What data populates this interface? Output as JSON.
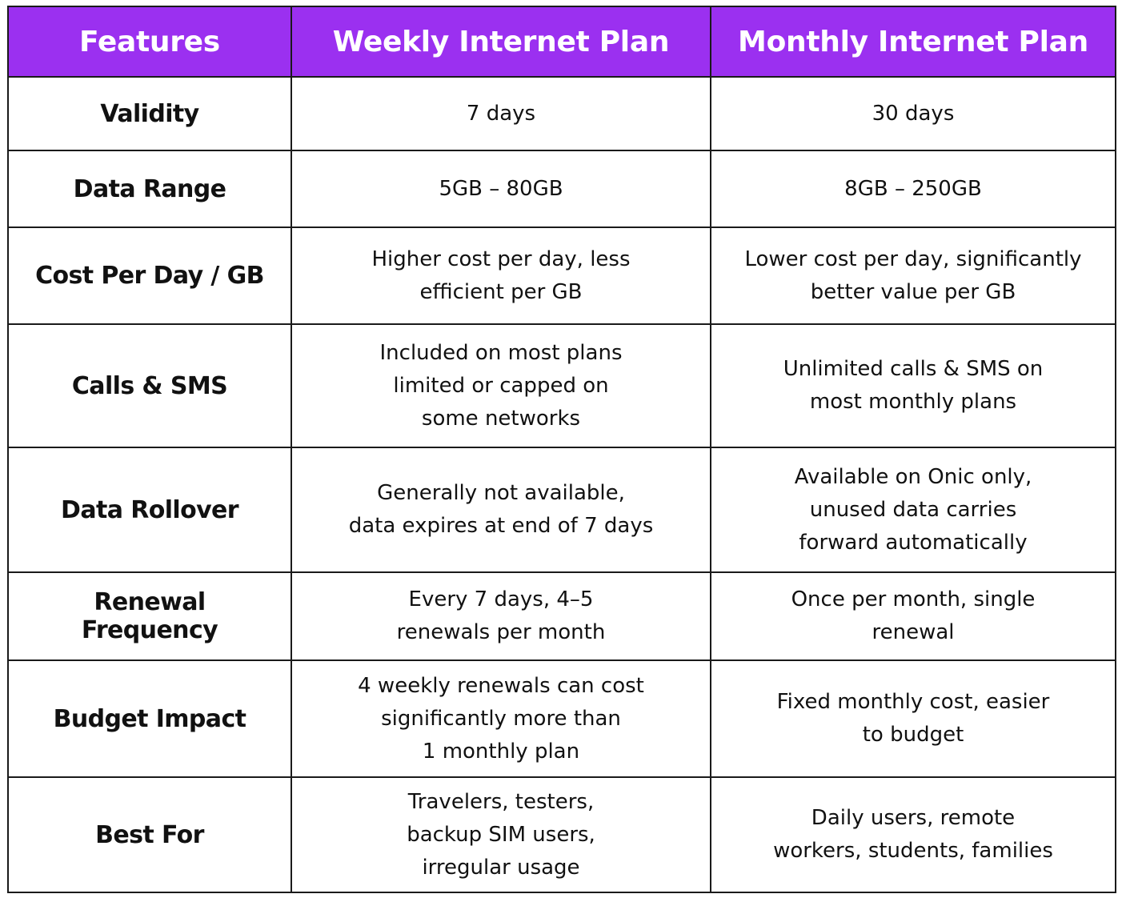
{
  "table": {
    "header": {
      "features": "Features",
      "weekly": "Weekly Internet Plan",
      "monthly": "Monthly Internet Plan"
    },
    "rows": [
      {
        "feature": "Validity",
        "weekly": "7 days",
        "monthly": "30 days"
      },
      {
        "feature": "Data Range",
        "weekly": "5GB – 80GB",
        "monthly": "8GB – 250GB"
      },
      {
        "feature": "Cost Per Day / GB",
        "weekly": "Higher cost per day, less\nefficient per GB",
        "monthly": "Lower cost per day, significantly\nbetter value per GB"
      },
      {
        "feature": "Calls & SMS",
        "weekly": "Included on most plans\nlimited or capped on\nsome networks",
        "monthly": "Unlimited calls & SMS on\nmost monthly plans"
      },
      {
        "feature": "Data Rollover",
        "weekly": "Generally not available,\ndata expires at end of 7 days",
        "monthly": "Available on Onic only,\nunused data carries\nforward automatically"
      },
      {
        "feature": "Renewal Frequency",
        "weekly": "Every 7 days, 4–5\nrenewals per month",
        "monthly": "Once per month, single\nrenewal"
      },
      {
        "feature": "Budget Impact",
        "weekly": "4 weekly renewals can cost\nsignificantly more than\n1 monthly plan",
        "monthly": "Fixed monthly cost, easier\nto budget"
      },
      {
        "feature": "Best For",
        "weekly": "Travelers, testers,\nbackup SIM users,\nirregular usage",
        "monthly": "Daily users, remote\nworkers, students, families"
      }
    ]
  },
  "colors": {
    "header_bg": "#9b30f0",
    "header_text": "#ffffff",
    "border": "#1a1a1a",
    "text": "#111111"
  }
}
